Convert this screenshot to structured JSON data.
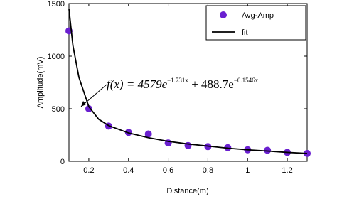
{
  "chart_data": {
    "type": "scatter",
    "xlabel": "Distance(m)",
    "ylabel": "Amplitude(mV)",
    "xlim": [
      0.1,
      1.3
    ],
    "ylim": [
      0,
      1500
    ],
    "xticks": [
      0.2,
      0.4,
      0.6,
      0.8,
      1,
      1.2
    ],
    "yticks": [
      0,
      500,
      1000,
      1500
    ],
    "legend": "upper right",
    "annotation": {
      "base1": "f(x) = 4579e",
      "exp1": "−1.731x",
      "base2": " + 488.7e",
      "exp2": "−0.1546x"
    },
    "series": [
      {
        "name": "Avg-Amp",
        "mode": "markers",
        "color": "#6a1fd0",
        "x": [
          0.1,
          0.2,
          0.3,
          0.4,
          0.5,
          0.6,
          0.7,
          0.8,
          0.9,
          1.0,
          1.1,
          1.2,
          1.3
        ],
        "values": [
          1240,
          500,
          335,
          275,
          260,
          175,
          150,
          140,
          130,
          110,
          105,
          85,
          75
        ]
      },
      {
        "name": "fit",
        "mode": "line",
        "color": "#000000",
        "x": [
          0.1,
          0.12,
          0.15,
          0.2,
          0.25,
          0.3,
          0.4,
          0.5,
          0.6,
          0.7,
          0.8,
          0.9,
          1.0,
          1.1,
          1.2,
          1.3
        ],
        "values": [
          1450,
          1100,
          800,
          520,
          400,
          340,
          270,
          225,
          190,
          165,
          145,
          125,
          110,
          98,
          85,
          75
        ]
      }
    ]
  }
}
